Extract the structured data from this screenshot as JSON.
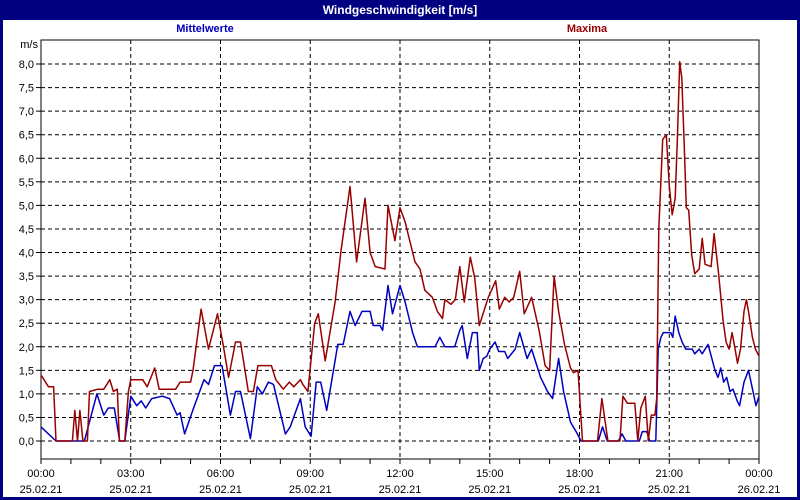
{
  "window": {
    "title": "Windgeschwindigkeit [m/s]"
  },
  "colors": {
    "frame": "#000080",
    "titlebar_bg": "#000080",
    "titlebar_text": "#FFFFFF",
    "canvas_bg": "#FFFFFF",
    "grid": "#000000",
    "axis": "#000000",
    "mean_series": "#0000BF",
    "max_series": "#990000"
  },
  "chart_data": {
    "type": "line",
    "title": "Windgeschwindigkeit [m/s]",
    "ylabel": "m/s",
    "ylim": [
      0.0,
      8.0
    ],
    "y_step": 0.5,
    "xlim_hours": [
      0,
      24
    ],
    "grid": "dashed",
    "legend_position": "top",
    "legend": [
      {
        "label": "Mittelwerte",
        "color": "#0000BF"
      },
      {
        "label": "Maxima",
        "color": "#990000"
      }
    ],
    "y_tick_labels": [
      "0,0",
      "0,5",
      "1,0",
      "1,5",
      "2,0",
      "2,5",
      "3,0",
      "3,5",
      "4,0",
      "4,5",
      "5,0",
      "5,5",
      "6,0",
      "6,5",
      "7,0",
      "7,5",
      "8,0"
    ],
    "x_ticks": [
      {
        "hour": 0,
        "time": "00:00",
        "date": "25.02.21"
      },
      {
        "hour": 3,
        "time": "03:00",
        "date": "25.02.21"
      },
      {
        "hour": 6,
        "time": "06:00",
        "date": "25.02.21"
      },
      {
        "hour": 9,
        "time": "09:00",
        "date": "25.02.21"
      },
      {
        "hour": 12,
        "time": "12:00",
        "date": "25.02.21"
      },
      {
        "hour": 15,
        "time": "15:00",
        "date": "25.02.21"
      },
      {
        "hour": 18,
        "time": "18:00",
        "date": "25.02.21"
      },
      {
        "hour": 21,
        "time": "21:00",
        "date": "25.02.21"
      },
      {
        "hour": 24,
        "time": "00:00",
        "date": "26.02.21"
      }
    ],
    "series": [
      {
        "name": "Mittelwerte",
        "color": "#0000BF",
        "points": [
          [
            0,
            0.3
          ],
          [
            0.5,
            0
          ],
          [
            1.45,
            0
          ],
          [
            1.87,
            1.0
          ],
          [
            2.1,
            0.55
          ],
          [
            2.25,
            0.7
          ],
          [
            2.45,
            0.7
          ],
          [
            2.63,
            0
          ],
          [
            2.8,
            0
          ],
          [
            3.0,
            0.95
          ],
          [
            3.2,
            0.75
          ],
          [
            3.35,
            0.85
          ],
          [
            3.5,
            0.7
          ],
          [
            3.7,
            0.9
          ],
          [
            4.05,
            0.95
          ],
          [
            4.3,
            0.9
          ],
          [
            4.55,
            0.55
          ],
          [
            4.65,
            0.6
          ],
          [
            4.8,
            0.15
          ],
          [
            5.1,
            0.7
          ],
          [
            5.45,
            1.3
          ],
          [
            5.6,
            1.2
          ],
          [
            5.8,
            1.6
          ],
          [
            6.05,
            1.6
          ],
          [
            6.33,
            0.55
          ],
          [
            6.5,
            1.05
          ],
          [
            6.67,
            1.05
          ],
          [
            7.0,
            0.05
          ],
          [
            7.23,
            1.15
          ],
          [
            7.4,
            1.0
          ],
          [
            7.6,
            1.25
          ],
          [
            7.77,
            1.2
          ],
          [
            8.17,
            0.15
          ],
          [
            8.33,
            0.3
          ],
          [
            8.67,
            0.9
          ],
          [
            8.83,
            0.3
          ],
          [
            9.03,
            0.1
          ],
          [
            9.2,
            1.25
          ],
          [
            9.35,
            1.25
          ],
          [
            9.55,
            0.65
          ],
          [
            9.92,
            2.05
          ],
          [
            10.1,
            2.05
          ],
          [
            10.33,
            2.75
          ],
          [
            10.5,
            2.45
          ],
          [
            10.73,
            2.75
          ],
          [
            11.0,
            2.75
          ],
          [
            11.1,
            2.45
          ],
          [
            11.33,
            2.45
          ],
          [
            11.42,
            2.35
          ],
          [
            11.6,
            3.3
          ],
          [
            11.75,
            2.7
          ],
          [
            12.0,
            3.3
          ],
          [
            12.17,
            2.95
          ],
          [
            12.42,
            2.3
          ],
          [
            12.58,
            2.0
          ],
          [
            13.17,
            2.0
          ],
          [
            13.33,
            2.2
          ],
          [
            13.5,
            2.0
          ],
          [
            13.83,
            2.0
          ],
          [
            14.0,
            2.35
          ],
          [
            14.08,
            2.45
          ],
          [
            14.25,
            1.75
          ],
          [
            14.42,
            2.3
          ],
          [
            14.58,
            2.3
          ],
          [
            14.65,
            1.5
          ],
          [
            14.78,
            1.75
          ],
          [
            14.9,
            1.8
          ],
          [
            15.0,
            1.95
          ],
          [
            15.18,
            2.1
          ],
          [
            15.3,
            1.9
          ],
          [
            15.5,
            1.9
          ],
          [
            15.6,
            1.75
          ],
          [
            15.85,
            1.95
          ],
          [
            16.0,
            2.3
          ],
          [
            16.25,
            1.75
          ],
          [
            16.4,
            1.95
          ],
          [
            16.7,
            1.35
          ],
          [
            16.93,
            1.05
          ],
          [
            17.1,
            0.9
          ],
          [
            17.3,
            1.75
          ],
          [
            17.47,
            1.05
          ],
          [
            17.7,
            0.4
          ],
          [
            17.93,
            0.15
          ],
          [
            18.05,
            0
          ],
          [
            18.63,
            0
          ],
          [
            18.77,
            0.3
          ],
          [
            18.93,
            0
          ],
          [
            19.3,
            0
          ],
          [
            19.42,
            0.15
          ],
          [
            19.55,
            0
          ],
          [
            20.0,
            0
          ],
          [
            20.1,
            0.2
          ],
          [
            20.25,
            0.2
          ],
          [
            20.35,
            0
          ],
          [
            20.55,
            0
          ],
          [
            20.63,
            1.95
          ],
          [
            20.72,
            2.2
          ],
          [
            20.8,
            2.3
          ],
          [
            21.05,
            2.3
          ],
          [
            21.12,
            2.2
          ],
          [
            21.2,
            2.65
          ],
          [
            21.32,
            2.3
          ],
          [
            21.43,
            2.1
          ],
          [
            21.55,
            1.95
          ],
          [
            21.77,
            1.95
          ],
          [
            21.85,
            1.85
          ],
          [
            22.0,
            1.95
          ],
          [
            22.1,
            1.85
          ],
          [
            22.3,
            2.05
          ],
          [
            22.53,
            1.5
          ],
          [
            22.63,
            1.35
          ],
          [
            22.72,
            1.55
          ],
          [
            22.82,
            1.25
          ],
          [
            22.92,
            1.35
          ],
          [
            23.03,
            1.05
          ],
          [
            23.13,
            1.1
          ],
          [
            23.27,
            0.85
          ],
          [
            23.35,
            0.75
          ],
          [
            23.5,
            1.25
          ],
          [
            23.65,
            1.5
          ],
          [
            23.8,
            1.05
          ],
          [
            23.9,
            0.75
          ],
          [
            24.0,
            0.95
          ]
        ]
      },
      {
        "name": "Maxima",
        "color": "#990000",
        "points": [
          [
            0,
            1.4
          ],
          [
            0.25,
            1.15
          ],
          [
            0.42,
            1.15
          ],
          [
            0.5,
            0
          ],
          [
            1.05,
            0
          ],
          [
            1.13,
            0.65
          ],
          [
            1.22,
            0
          ],
          [
            1.3,
            0.65
          ],
          [
            1.4,
            0
          ],
          [
            1.55,
            0
          ],
          [
            1.62,
            1.05
          ],
          [
            1.9,
            1.1
          ],
          [
            2.1,
            1.1
          ],
          [
            2.3,
            1.3
          ],
          [
            2.42,
            1.05
          ],
          [
            2.55,
            1.1
          ],
          [
            2.62,
            0
          ],
          [
            2.8,
            0
          ],
          [
            2.92,
            1.05
          ],
          [
            3.0,
            1.3
          ],
          [
            3.4,
            1.3
          ],
          [
            3.55,
            1.15
          ],
          [
            3.8,
            1.55
          ],
          [
            3.95,
            1.1
          ],
          [
            4.3,
            1.1
          ],
          [
            4.5,
            1.1
          ],
          [
            4.65,
            1.25
          ],
          [
            5.0,
            1.25
          ],
          [
            5.08,
            1.5
          ],
          [
            5.35,
            2.8
          ],
          [
            5.6,
            1.95
          ],
          [
            5.9,
            2.7
          ],
          [
            6.1,
            2.0
          ],
          [
            6.27,
            1.35
          ],
          [
            6.5,
            2.1
          ],
          [
            6.67,
            2.1
          ],
          [
            6.93,
            1.05
          ],
          [
            7.1,
            1.05
          ],
          [
            7.25,
            1.6
          ],
          [
            7.7,
            1.6
          ],
          [
            7.85,
            1.3
          ],
          [
            8.1,
            1.1
          ],
          [
            8.3,
            1.25
          ],
          [
            8.45,
            1.15
          ],
          [
            8.67,
            1.3
          ],
          [
            8.75,
            1.2
          ],
          [
            8.92,
            1.05
          ],
          [
            9.15,
            2.5
          ],
          [
            9.27,
            2.7
          ],
          [
            9.5,
            1.7
          ],
          [
            9.83,
            2.95
          ],
          [
            10.03,
            4.05
          ],
          [
            10.33,
            5.4
          ],
          [
            10.55,
            3.8
          ],
          [
            10.83,
            5.15
          ],
          [
            11.0,
            4.0
          ],
          [
            11.17,
            3.7
          ],
          [
            11.5,
            3.65
          ],
          [
            11.6,
            5.0
          ],
          [
            11.83,
            4.25
          ],
          [
            12.0,
            4.95
          ],
          [
            12.17,
            4.65
          ],
          [
            12.5,
            3.8
          ],
          [
            12.67,
            3.65
          ],
          [
            12.83,
            3.2
          ],
          [
            13.08,
            3.05
          ],
          [
            13.25,
            2.75
          ],
          [
            13.42,
            2.6
          ],
          [
            13.5,
            3.0
          ],
          [
            13.7,
            2.9
          ],
          [
            13.85,
            3.0
          ],
          [
            14.0,
            3.7
          ],
          [
            14.15,
            2.95
          ],
          [
            14.35,
            3.9
          ],
          [
            14.5,
            3.45
          ],
          [
            14.65,
            2.45
          ],
          [
            14.95,
            3.05
          ],
          [
            15.2,
            3.4
          ],
          [
            15.32,
            2.8
          ],
          [
            15.5,
            3.05
          ],
          [
            15.65,
            2.95
          ],
          [
            15.8,
            3.05
          ],
          [
            16.0,
            3.6
          ],
          [
            16.15,
            2.7
          ],
          [
            16.4,
            3.05
          ],
          [
            16.65,
            2.35
          ],
          [
            16.85,
            1.6
          ],
          [
            17.0,
            1.5
          ],
          [
            17.15,
            3.5
          ],
          [
            17.3,
            2.75
          ],
          [
            17.5,
            2.05
          ],
          [
            17.7,
            1.55
          ],
          [
            17.8,
            1.45
          ],
          [
            17.95,
            1.5
          ],
          [
            18.1,
            0
          ],
          [
            18.6,
            0
          ],
          [
            18.75,
            0.9
          ],
          [
            18.95,
            0
          ],
          [
            19.35,
            0
          ],
          [
            19.45,
            0.95
          ],
          [
            19.6,
            0.8
          ],
          [
            19.85,
            0.8
          ],
          [
            19.95,
            0
          ],
          [
            20.05,
            0.7
          ],
          [
            20.2,
            0.95
          ],
          [
            20.3,
            0
          ],
          [
            20.4,
            0.55
          ],
          [
            20.52,
            0.55
          ],
          [
            20.58,
            0.9
          ],
          [
            20.65,
            4.5
          ],
          [
            20.78,
            6.4
          ],
          [
            20.9,
            6.5
          ],
          [
            21.0,
            5.4
          ],
          [
            21.1,
            4.8
          ],
          [
            21.2,
            5.15
          ],
          [
            21.28,
            6.55
          ],
          [
            21.35,
            8.05
          ],
          [
            21.42,
            7.7
          ],
          [
            21.5,
            6.3
          ],
          [
            21.57,
            4.95
          ],
          [
            21.65,
            4.9
          ],
          [
            21.75,
            3.95
          ],
          [
            21.85,
            3.55
          ],
          [
            22.0,
            3.65
          ],
          [
            22.1,
            4.3
          ],
          [
            22.2,
            3.75
          ],
          [
            22.4,
            3.7
          ],
          [
            22.5,
            4.4
          ],
          [
            22.65,
            3.55
          ],
          [
            22.8,
            2.55
          ],
          [
            22.9,
            2.1
          ],
          [
            23.0,
            1.95
          ],
          [
            23.1,
            2.3
          ],
          [
            23.2,
            1.95
          ],
          [
            23.28,
            1.65
          ],
          [
            23.38,
            1.95
          ],
          [
            23.5,
            2.75
          ],
          [
            23.58,
            3.0
          ],
          [
            23.65,
            2.75
          ],
          [
            23.78,
            2.2
          ],
          [
            23.88,
            1.95
          ],
          [
            24.0,
            1.8
          ]
        ]
      }
    ]
  }
}
